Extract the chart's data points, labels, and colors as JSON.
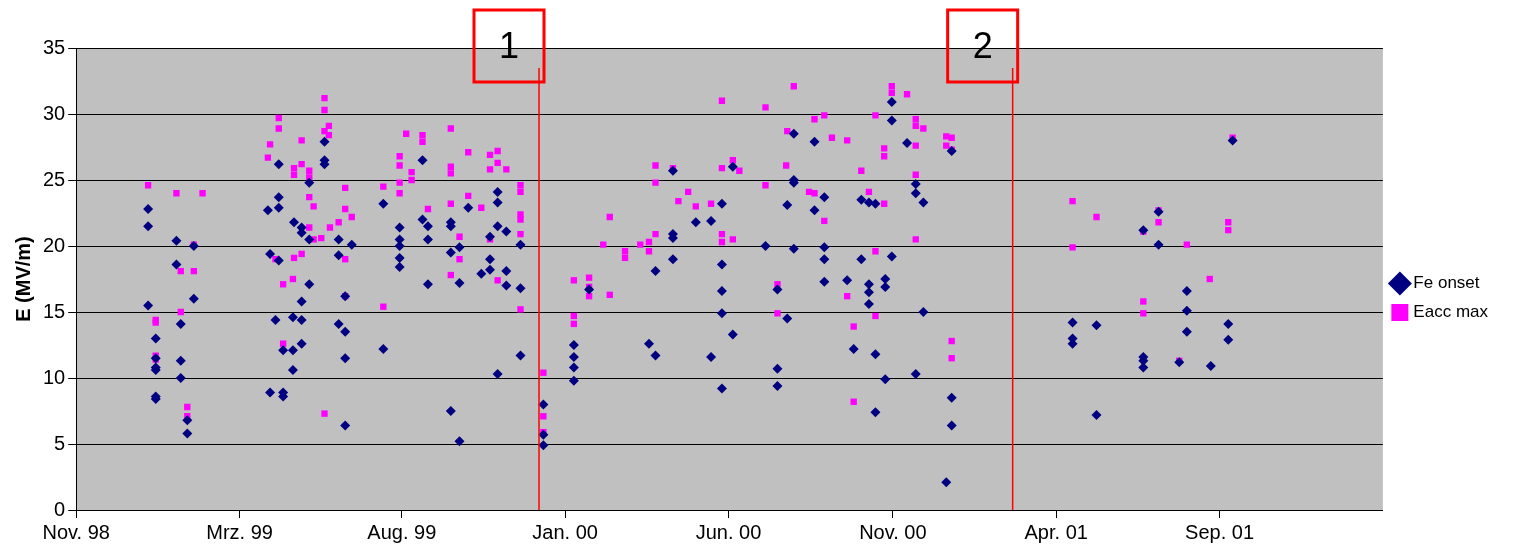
{
  "chart_data": {
    "type": "scatter",
    "ylabel": "E (MV/m)",
    "xlim": [
      "1998-11-01",
      "2002-02-13"
    ],
    "xticks": [
      {
        "value": "1998-11-01",
        "label": "Nov. 98"
      },
      {
        "value": "1999-03-31",
        "label": "Mrz. 99"
      },
      {
        "value": "1999-08-27",
        "label": "Aug. 99"
      },
      {
        "value": "2000-01-24",
        "label": "Jan. 00"
      },
      {
        "value": "2000-06-22",
        "label": "Jun. 00"
      },
      {
        "value": "2000-11-20",
        "label": "Nov. 00"
      },
      {
        "value": "2001-04-19",
        "label": "Apr. 01"
      },
      {
        "value": "2001-09-16",
        "label": "Sep. 01"
      }
    ],
    "ylim": [
      0,
      35
    ],
    "yticks": [
      0,
      5,
      10,
      15,
      20,
      25,
      30,
      35
    ],
    "grid": "y",
    "legend": "right",
    "ref_lines": [
      {
        "axis": "x",
        "value": "1999-12-31",
        "label": "1",
        "color": "#ff0000"
      },
      {
        "axis": "x",
        "value": "2001-03-10",
        "label": "2",
        "color": "#ff0000"
      }
    ],
    "series": [
      {
        "name": "Fe onset",
        "color": "#000080",
        "marker": "diamond",
        "x": [
          "1999-01-06",
          "1999-01-06",
          "1999-01-06",
          "1999-01-13",
          "1999-01-13",
          "1999-01-13",
          "1999-01-13",
          "1999-01-13",
          "1999-01-13",
          "1999-02-01",
          "1999-02-01",
          "1999-02-05",
          "1999-02-05",
          "1999-02-05",
          "1999-02-11",
          "1999-02-11",
          "1999-02-17",
          "1999-02-17",
          "1999-04-26",
          "1999-04-28",
          "1999-04-28",
          "1999-05-03",
          "1999-05-06",
          "1999-05-06",
          "1999-05-06",
          "1999-05-06",
          "1999-05-10",
          "1999-05-10",
          "1999-05-10",
          "1999-05-19",
          "1999-05-19",
          "1999-05-19",
          "1999-05-20",
          "1999-05-27",
          "1999-05-27",
          "1999-05-27",
          "1999-05-27",
          "1999-05-27",
          "1999-06-03",
          "1999-06-03",
          "1999-06-03",
          "1999-06-17",
          "1999-06-17",
          "1999-06-17",
          "1999-06-30",
          "1999-06-30",
          "1999-06-30",
          "1999-07-06",
          "1999-07-06",
          "1999-07-06",
          "1999-07-06",
          "1999-07-12",
          "1999-08-10",
          "1999-08-10",
          "1999-08-25",
          "1999-08-25",
          "1999-08-25",
          "1999-08-25",
          "1999-08-25",
          "1999-09-15",
          "1999-09-15",
          "1999-09-20",
          "1999-09-20",
          "1999-09-20",
          "1999-10-11",
          "1999-10-11",
          "1999-10-11",
          "1999-10-11",
          "1999-10-19",
          "1999-10-19",
          "1999-10-19",
          "1999-10-27",
          "1999-11-08",
          "1999-11-16",
          "1999-11-16",
          "1999-11-16",
          "1999-11-23",
          "1999-11-23",
          "1999-11-23",
          "1999-11-23",
          "1999-12-01",
          "1999-12-01",
          "1999-12-01",
          "1999-12-14",
          "1999-12-14",
          "1999-12-14",
          "2000-01-04",
          "2000-01-04",
          "2000-01-04",
          "2000-02-01",
          "2000-02-01",
          "2000-02-01",
          "2000-02-01",
          "2000-02-15",
          "2000-04-10",
          "2000-04-16",
          "2000-04-16",
          "2000-05-02",
          "2000-05-02",
          "2000-05-02",
          "2000-05-02",
          "2000-05-23",
          "2000-06-06",
          "2000-06-06",
          "2000-06-16",
          "2000-06-16",
          "2000-06-16",
          "2000-06-16",
          "2000-06-16",
          "2000-06-26",
          "2000-06-26",
          "2000-07-26",
          "2000-08-06",
          "2000-08-06",
          "2000-08-06",
          "2000-08-15",
          "2000-08-15",
          "2000-08-21",
          "2000-08-21",
          "2000-08-21",
          "2000-08-21",
          "2000-09-09",
          "2000-09-09",
          "2000-09-18",
          "2000-09-18",
          "2000-09-18",
          "2000-09-18",
          "2000-10-09",
          "2000-10-15",
          "2000-10-22",
          "2000-10-22",
          "2000-10-29",
          "2000-10-29",
          "2000-10-29",
          "2000-10-29",
          "2000-11-04",
          "2000-11-04",
          "2000-11-04",
          "2000-11-13",
          "2000-11-13",
          "2000-11-13",
          "2000-11-19",
          "2000-11-19",
          "2000-11-19",
          "2000-12-03",
          "2000-12-11",
          "2000-12-11",
          "2000-12-11",
          "2000-12-18",
          "2000-12-18",
          "2001-01-08",
          "2001-01-13",
          "2001-01-13",
          "2001-01-13",
          "2001-05-04",
          "2001-05-04",
          "2001-05-04",
          "2001-05-26",
          "2001-05-26",
          "2001-07-08",
          "2001-07-08",
          "2001-07-08",
          "2001-07-08",
          "2001-07-22",
          "2001-07-22",
          "2001-08-10",
          "2001-08-17",
          "2001-08-17",
          "2001-08-17",
          "2001-09-08",
          "2001-09-24",
          "2001-09-24",
          "2001-09-28"
        ],
        "values": [
          22.8,
          21.5,
          15.5,
          11.5,
          10.8,
          13.0,
          10.6,
          8.6,
          8.4,
          20.4,
          18.6,
          14.1,
          11.3,
          10.0,
          6.8,
          5.8,
          20.0,
          16.0,
          22.7,
          19.4,
          8.9,
          14.4,
          26.2,
          23.7,
          22.9,
          18.9,
          12.1,
          8.9,
          8.6,
          14.6,
          12.1,
          10.6,
          21.8,
          21.4,
          21.0,
          15.8,
          14.4,
          12.6,
          24.8,
          20.5,
          17.1,
          27.9,
          26.5,
          26.2,
          20.5,
          19.3,
          14.1,
          16.2,
          13.5,
          11.5,
          6.4,
          20.1,
          23.2,
          12.2,
          21.4,
          20.5,
          20.0,
          19.1,
          18.4,
          26.5,
          22.0,
          21.5,
          20.5,
          17.1,
          21.8,
          21.5,
          19.5,
          7.5,
          19.9,
          17.2,
          5.2,
          22.9,
          17.9,
          20.7,
          19.0,
          18.2,
          24.1,
          23.3,
          21.5,
          10.3,
          21.1,
          18.1,
          17.0,
          20.1,
          16.8,
          11.7,
          8.0,
          5.7,
          4.9,
          12.5,
          11.6,
          10.8,
          9.8,
          16.7,
          12.6,
          18.1,
          11.7,
          25.7,
          20.9,
          20.6,
          19.0,
          21.8,
          21.9,
          11.6,
          23.2,
          18.6,
          16.6,
          14.9,
          9.2,
          26.0,
          13.3,
          20.0,
          16.7,
          10.7,
          9.4,
          14.5,
          23.1,
          28.5,
          25.0,
          24.8,
          19.8,
          27.9,
          22.7,
          23.7,
          19.9,
          19.0,
          17.3,
          17.4,
          12.2,
          23.5,
          19.0,
          23.3,
          17.1,
          16.5,
          15.6,
          23.2,
          11.8,
          7.4,
          17.5,
          16.9,
          9.9,
          30.9,
          29.5,
          19.2,
          27.8,
          24.7,
          24.0,
          10.3,
          23.3,
          15.0,
          2.1,
          27.2,
          8.5,
          6.4,
          14.2,
          13.0,
          12.6,
          14.0,
          7.2,
          21.2,
          11.6,
          11.3,
          10.8,
          20.1,
          22.6,
          11.2,
          16.6,
          15.1,
          13.5,
          10.9,
          14.1,
          12.9,
          28.0
        ]
      },
      {
        "name": "Eacc max",
        "color": "#ff00ff",
        "marker": "square",
        "x": [
          "1999-01-06",
          "1999-01-13",
          "1999-01-13",
          "1999-01-13",
          "1999-01-13",
          "1999-02-01",
          "1999-02-05",
          "1999-02-05",
          "1999-02-11",
          "1999-02-11",
          "1999-02-17",
          "1999-02-17",
          "1999-02-25",
          "1999-04-26",
          "1999-04-28",
          "1999-05-03",
          "1999-05-06",
          "1999-05-06",
          "1999-05-10",
          "1999-05-10",
          "1999-05-19",
          "1999-05-20",
          "1999-05-20",
          "1999-05-20",
          "1999-05-27",
          "1999-05-27",
          "1999-05-27",
          "1999-06-03",
          "1999-06-03",
          "1999-06-03",
          "1999-06-03",
          "1999-06-07",
          "1999-06-07",
          "1999-06-14",
          "1999-06-17",
          "1999-06-17",
          "1999-06-17",
          "1999-06-17",
          "1999-06-21",
          "1999-06-21",
          "1999-06-22",
          "1999-06-30",
          "1999-07-06",
          "1999-07-06",
          "1999-07-06",
          "1999-07-06",
          "1999-07-12",
          "1999-08-10",
          "1999-08-10",
          "1999-08-25",
          "1999-08-25",
          "1999-08-25",
          "1999-08-25",
          "1999-08-31",
          "1999-09-05",
          "1999-09-05",
          "1999-09-15",
          "1999-09-15",
          "1999-09-20",
          "1999-10-11",
          "1999-10-11",
          "1999-10-11",
          "1999-10-11",
          "1999-10-11",
          "1999-10-19",
          "1999-10-19",
          "1999-10-27",
          "1999-10-27",
          "1999-11-08",
          "1999-11-16",
          "1999-11-16",
          "1999-11-16",
          "1999-11-23",
          "1999-11-23",
          "1999-11-23",
          "1999-12-01",
          "1999-12-14",
          "1999-12-14",
          "1999-12-14",
          "1999-12-14",
          "1999-12-14",
          "1999-12-14",
          "2000-01-04",
          "2000-01-04",
          "2000-01-04",
          "2000-02-01",
          "2000-02-01",
          "2000-02-01",
          "2000-02-15",
          "2000-02-15",
          "2000-02-15",
          "2000-02-28",
          "2000-03-05",
          "2000-03-05",
          "2000-03-19",
          "2000-03-19",
          "2000-04-02",
          "2000-04-10",
          "2000-04-10",
          "2000-04-16",
          "2000-04-16",
          "2000-04-16",
          "2000-05-02",
          "2000-05-07",
          "2000-05-16",
          "2000-05-23",
          "2000-06-06",
          "2000-06-16",
          "2000-06-16",
          "2000-06-16",
          "2000-06-16",
          "2000-06-26",
          "2000-06-26",
          "2000-07-02",
          "2000-07-26",
          "2000-07-26",
          "2000-08-06",
          "2000-08-06",
          "2000-08-14",
          "2000-08-15",
          "2000-08-21",
          "2000-09-04",
          "2000-09-09",
          "2000-09-09",
          "2000-09-18",
          "2000-09-18",
          "2000-09-25",
          "2000-10-09",
          "2000-10-09",
          "2000-10-15",
          "2000-10-15",
          "2000-10-22",
          "2000-10-29",
          "2000-11-04",
          "2000-11-04",
          "2000-11-04",
          "2000-11-12",
          "2000-11-12",
          "2000-11-12",
          "2000-11-19",
          "2000-11-19",
          "2000-12-03",
          "2000-12-11",
          "2000-12-11",
          "2000-12-11",
          "2000-12-11",
          "2000-12-11",
          "2000-12-18",
          "2001-01-08",
          "2001-01-08",
          "2001-01-13",
          "2001-01-13",
          "2001-01-13",
          "2001-01-13",
          "2001-05-04",
          "2001-05-04",
          "2001-05-26",
          "2001-07-08",
          "2001-07-08",
          "2001-07-08",
          "2001-07-22",
          "2001-07-22",
          "2001-08-10",
          "2001-08-17",
          "2001-09-07",
          "2001-09-24",
          "2001-09-24",
          "2001-09-28"
        ],
        "values": [
          24.6,
          14.2,
          14.4,
          11.7,
          11.4,
          24.0,
          18.1,
          15.0,
          7.8,
          7.1,
          20.1,
          18.1,
          24.0,
          26.7,
          27.7,
          19.0,
          29.7,
          28.9,
          17.1,
          12.6,
          17.5,
          25.9,
          25.4,
          19.1,
          26.2,
          19.4,
          28.0,
          25.7,
          25.2,
          23.7,
          21.4,
          23.0,
          20.5,
          20.6,
          31.2,
          30.3,
          28.7,
          7.3,
          29.1,
          28.4,
          21.4,
          21.8,
          19.0,
          16.2,
          24.4,
          22.8,
          22.2,
          24.5,
          15.4,
          26.8,
          26.1,
          24.8,
          24.0,
          28.5,
          25.6,
          25.0,
          28.4,
          27.9,
          22.8,
          28.9,
          26.0,
          25.5,
          23.2,
          17.8,
          20.7,
          19.0,
          27.1,
          23.8,
          22.9,
          26.9,
          25.8,
          20.5,
          27.2,
          26.3,
          17.4,
          25.8,
          24.6,
          24.1,
          22.4,
          22.0,
          20.9,
          15.2,
          10.4,
          7.1,
          5.9,
          17.4,
          14.7,
          14.1,
          17.6,
          16.9,
          16.2,
          20.1,
          22.2,
          16.3,
          19.6,
          19.1,
          20.1,
          20.3,
          19.6,
          26.1,
          24.8,
          20.9,
          25.9,
          23.4,
          24.1,
          23.0,
          23.2,
          31.0,
          25.9,
          20.9,
          20.3,
          26.5,
          20.5,
          25.7,
          30.5,
          24.6,
          17.1,
          14.9,
          26.1,
          28.7,
          32.1,
          24.1,
          29.6,
          24.0,
          29.9,
          21.9,
          28.2,
          28.0,
          16.2,
          13.9,
          8.2,
          25.7,
          24.1,
          29.9,
          19.6,
          14.7,
          27.4,
          26.8,
          23.2,
          32.1,
          31.6,
          31.5,
          29.6,
          29.1,
          27.6,
          25.4,
          20.5,
          28.9,
          28.3,
          27.6,
          28.2,
          27.3,
          12.8,
          11.5,
          23.4,
          19.9,
          22.2,
          21.1,
          15.8,
          14.9,
          22.7,
          21.8,
          11.3,
          20.1,
          17.5,
          21.8,
          21.2,
          28.2
        ]
      }
    ]
  }
}
